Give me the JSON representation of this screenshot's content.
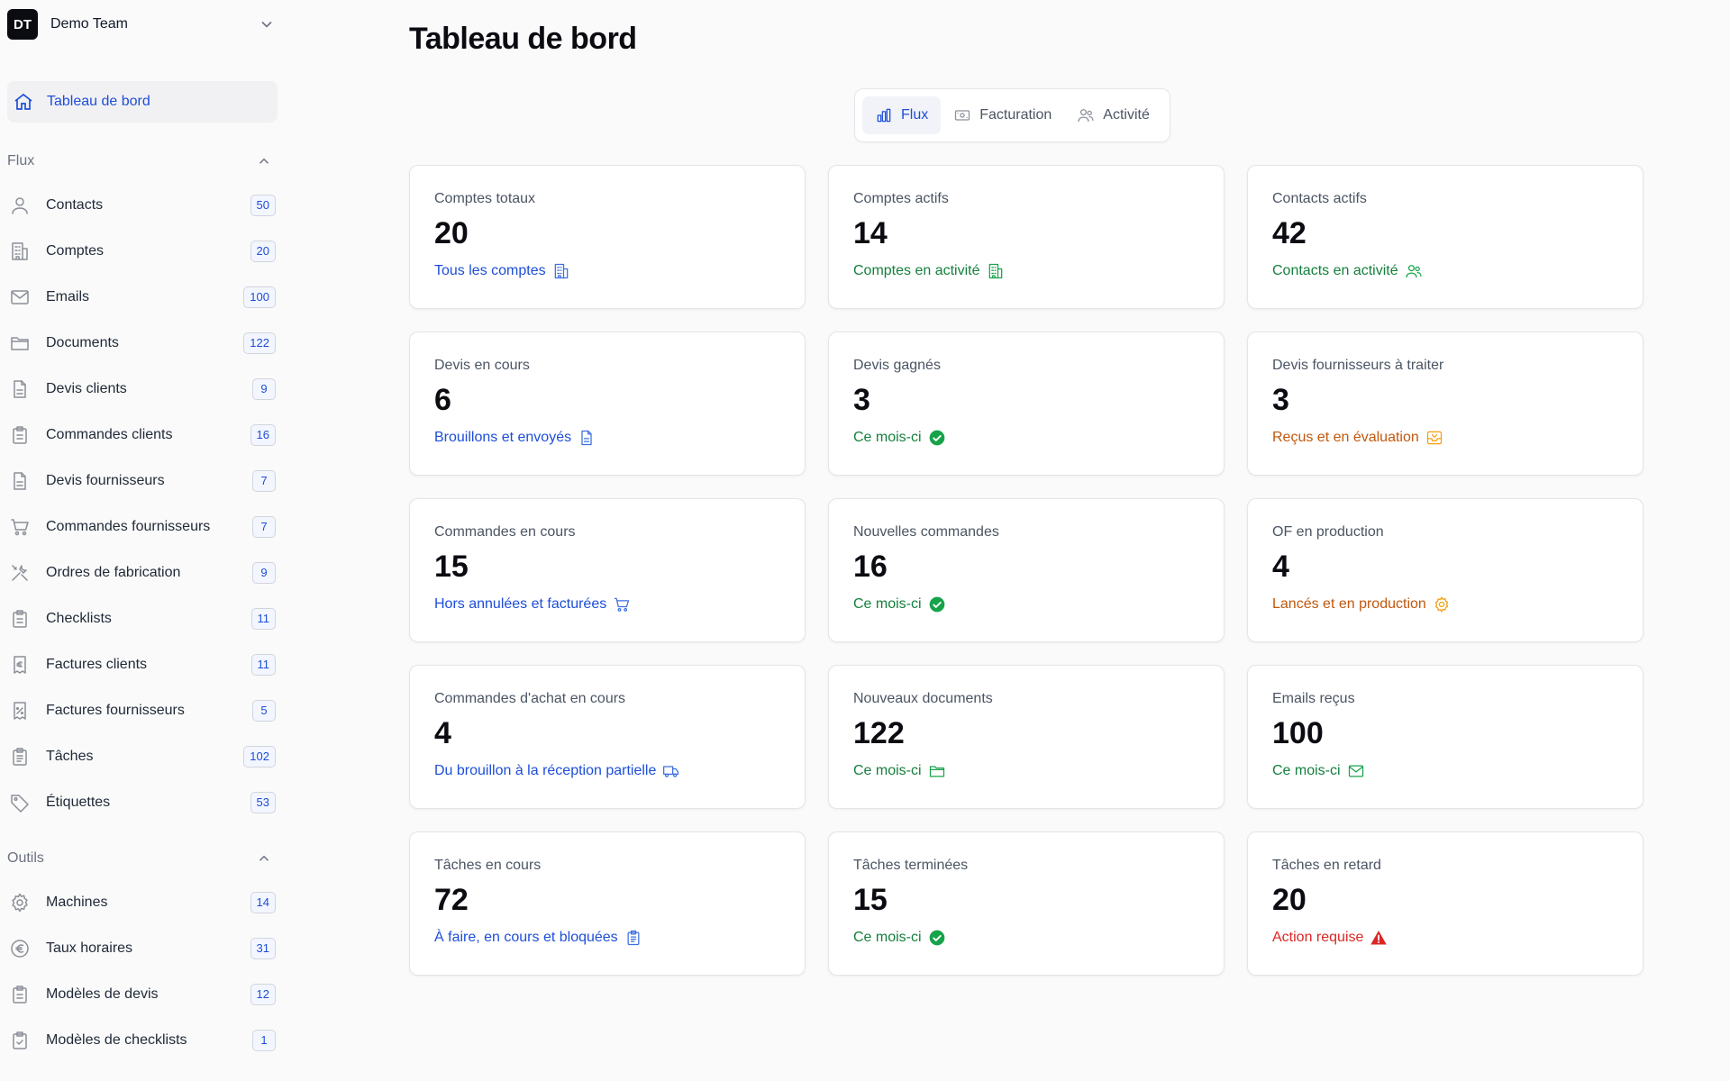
{
  "team": {
    "initials": "DT",
    "name": "Demo Team"
  },
  "nav": {
    "home_label": "Tableau de bord",
    "flux_title": "Flux",
    "flux_items": [
      {
        "label": "Contacts",
        "count": "50",
        "icon": "user-icon"
      },
      {
        "label": "Comptes",
        "count": "20",
        "icon": "building-icon"
      },
      {
        "label": "Emails",
        "count": "100",
        "icon": "mail-icon"
      },
      {
        "label": "Documents",
        "count": "122",
        "icon": "folder-icon"
      },
      {
        "label": "Devis clients",
        "count": "9",
        "icon": "document-icon"
      },
      {
        "label": "Commandes clients",
        "count": "16",
        "icon": "clipboard-icon"
      },
      {
        "label": "Devis fournisseurs",
        "count": "7",
        "icon": "document-icon"
      },
      {
        "label": "Commandes fournisseurs",
        "count": "7",
        "icon": "cart-icon"
      },
      {
        "label": "Ordres de fabrication",
        "count": "9",
        "icon": "tools-icon"
      },
      {
        "label": "Checklists",
        "count": "11",
        "icon": "clipboard-icon"
      },
      {
        "label": "Factures clients",
        "count": "11",
        "icon": "invoice-euro-icon"
      },
      {
        "label": "Factures fournisseurs",
        "count": "5",
        "icon": "invoice-percent-icon"
      },
      {
        "label": "Tâches",
        "count": "102",
        "icon": "clipboard-list-icon"
      },
      {
        "label": "Étiquettes",
        "count": "53",
        "icon": "tag-icon"
      }
    ],
    "outils_title": "Outils",
    "outils_items": [
      {
        "label": "Machines",
        "count": "14",
        "icon": "gear-icon"
      },
      {
        "label": "Taux horaires",
        "count": "31",
        "icon": "euro-icon"
      },
      {
        "label": "Modèles de devis",
        "count": "12",
        "icon": "clipboard-icon"
      },
      {
        "label": "Modèles de checklists",
        "count": "1",
        "icon": "clipboard-check-icon"
      }
    ]
  },
  "page": {
    "title": "Tableau de bord"
  },
  "tabs": [
    {
      "label": "Flux",
      "icon": "bar-chart-icon",
      "active": true
    },
    {
      "label": "Facturation",
      "icon": "banknote-icon",
      "active": false
    },
    {
      "label": "Activité",
      "icon": "users-icon",
      "active": false
    }
  ],
  "cards": [
    {
      "title": "Comptes totaux",
      "value": "20",
      "sub": "Tous les comptes",
      "tone": "blue",
      "icon": "building-icon"
    },
    {
      "title": "Comptes actifs",
      "value": "14",
      "sub": "Comptes en activité",
      "tone": "green",
      "icon": "building-icon"
    },
    {
      "title": "Contacts actifs",
      "value": "42",
      "sub": "Contacts en activité",
      "tone": "green",
      "icon": "users-icon"
    },
    {
      "title": "Devis en cours",
      "value": "6",
      "sub": "Brouillons et envoyés",
      "tone": "blue",
      "icon": "document-icon"
    },
    {
      "title": "Devis gagnés",
      "value": "3",
      "sub": "Ce mois-ci",
      "tone": "green",
      "icon": "check-circle-icon"
    },
    {
      "title": "Devis fournisseurs à traiter",
      "value": "3",
      "sub": "Reçus et en évaluation",
      "tone": "orange",
      "icon": "inbox-icon"
    },
    {
      "title": "Commandes en cours",
      "value": "15",
      "sub": "Hors annulées et facturées",
      "tone": "blue",
      "icon": "cart-icon"
    },
    {
      "title": "Nouvelles commandes",
      "value": "16",
      "sub": "Ce mois-ci",
      "tone": "green",
      "icon": "check-circle-icon"
    },
    {
      "title": "OF en production",
      "value": "4",
      "sub": "Lancés et en production",
      "tone": "orange",
      "icon": "gear-icon"
    },
    {
      "title": "Commandes d'achat en cours",
      "value": "4",
      "sub": "Du brouillon à la réception partielle",
      "tone": "blue",
      "icon": "truck-icon"
    },
    {
      "title": "Nouveaux documents",
      "value": "122",
      "sub": "Ce mois-ci",
      "tone": "green",
      "icon": "folder-icon"
    },
    {
      "title": "Emails reçus",
      "value": "100",
      "sub": "Ce mois-ci",
      "tone": "green",
      "icon": "mail-icon"
    },
    {
      "title": "Tâches en cours",
      "value": "72",
      "sub": "À faire, en cours et bloquées",
      "tone": "blue",
      "icon": "clipboard-list-icon"
    },
    {
      "title": "Tâches terminées",
      "value": "15",
      "sub": "Ce mois-ci",
      "tone": "green",
      "icon": "check-circle-icon"
    },
    {
      "title": "Tâches en retard",
      "value": "20",
      "sub": "Action requise",
      "tone": "red",
      "icon": "warning-icon"
    }
  ],
  "colors": {
    "accent": "#1d4ed8",
    "green": "#15803d",
    "orange": "#c2570c",
    "red": "#dc2626"
  }
}
